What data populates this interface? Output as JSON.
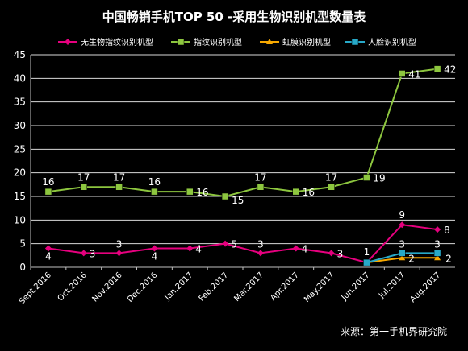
{
  "chart_data": {
    "type": "line",
    "title": "中国畅销手机TOP 50 -采用生物识别机型数量表",
    "source": "来源：第一手机界研究院",
    "categories": [
      "Sept.2016",
      "Oct.2016",
      "Nov.2016",
      "Dec.2016",
      "Jan.2017",
      "Feb.2017",
      "Mar.2017",
      "Apr.2017",
      "May.2017",
      "Jun.2017",
      "Jul.2017",
      "Aug.2017"
    ],
    "ylim": [
      0,
      45
    ],
    "yticks": [
      0,
      5,
      10,
      15,
      20,
      25,
      30,
      35,
      40,
      45
    ],
    "grid": true,
    "legend_position": "top",
    "series": [
      {
        "name": "无生物指纹识别机型",
        "color": "#e6007e",
        "marker": "diamond",
        "values": [
          4,
          3,
          3,
          4,
          4,
          5,
          3,
          4,
          3,
          1,
          9,
          8
        ],
        "labels": [
          "4",
          "3",
          "3",
          "4",
          "4",
          "5",
          "3",
          "4",
          "3",
          "1",
          "9",
          "8"
        ]
      },
      {
        "name": "指纹识别机型",
        "color": "#8dc63f",
        "marker": "square",
        "values": [
          16,
          17,
          17,
          16,
          16,
          15,
          17,
          16,
          17,
          19,
          41,
          42
        ],
        "labels": [
          "16",
          "17",
          "17",
          "16",
          "16",
          "15",
          "17",
          "16",
          "17",
          "19",
          "41",
          "42"
        ]
      },
      {
        "name": "虹膜识别机型",
        "color": "#f7a800",
        "marker": "triangle",
        "values": [
          null,
          null,
          null,
          null,
          null,
          null,
          null,
          null,
          null,
          1,
          2,
          2
        ],
        "labels": [
          null,
          null,
          null,
          null,
          null,
          null,
          null,
          null,
          null,
          null,
          "2",
          "2"
        ]
      },
      {
        "name": "人脸识别机型",
        "color": "#27a9c8",
        "marker": "square",
        "values": [
          null,
          null,
          null,
          null,
          null,
          null,
          null,
          null,
          null,
          1,
          3,
          3
        ],
        "labels": [
          null,
          null,
          null,
          null,
          null,
          null,
          null,
          null,
          null,
          null,
          "3",
          "3"
        ]
      }
    ]
  }
}
